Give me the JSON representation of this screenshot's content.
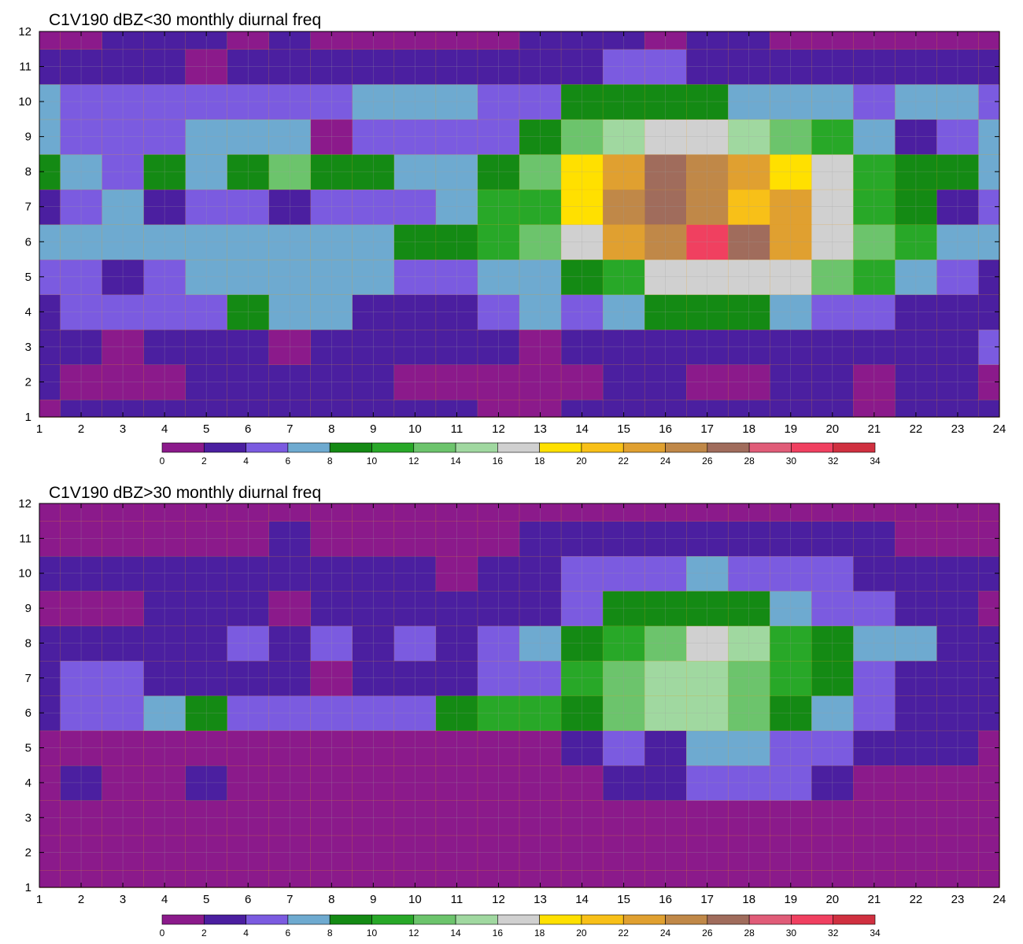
{
  "chart_data": [
    {
      "type": "heatmap",
      "title": "C1V190 dBZ<30 monthly diurnal freq",
      "x": [
        1,
        2,
        3,
        4,
        5,
        6,
        7,
        8,
        9,
        10,
        11,
        12,
        13,
        14,
        15,
        16,
        17,
        18,
        19,
        20,
        21,
        22,
        23,
        24
      ],
      "y": [
        1,
        2,
        3,
        4,
        5,
        6,
        7,
        8,
        9,
        10,
        11,
        12
      ],
      "xlim": [
        1,
        24
      ],
      "ylim": [
        1,
        12
      ],
      "xticks": [
        "1",
        "2",
        "3",
        "4",
        "5",
        "6",
        "7",
        "8",
        "9",
        "10",
        "11",
        "12",
        "13",
        "14",
        "15",
        "16",
        "17",
        "18",
        "19",
        "20",
        "21",
        "22",
        "23",
        "24"
      ],
      "yticks": [
        "1",
        "2",
        "3",
        "4",
        "5",
        "6",
        "7",
        "8",
        "9",
        "10",
        "11",
        "12"
      ],
      "grid": true,
      "z": [
        [
          1,
          3,
          3,
          2,
          2,
          3,
          3,
          3,
          3,
          3,
          3,
          1,
          1,
          2,
          2,
          2,
          3,
          3,
          2,
          2,
          1,
          2,
          3,
          3
        ],
        [
          3,
          1,
          1,
          1,
          2,
          3,
          3,
          3,
          3,
          1,
          1,
          1,
          1,
          1,
          3,
          3,
          1,
          1,
          3,
          3,
          1,
          3,
          3,
          1
        ],
        [
          3,
          3,
          1,
          3,
          3,
          3,
          1,
          3,
          3,
          3,
          3,
          3,
          1,
          3,
          3,
          3,
          3,
          3,
          3,
          3,
          3,
          3,
          3,
          5
        ],
        [
          3,
          5,
          5,
          5,
          5,
          9,
          7,
          7,
          3,
          3,
          3,
          5,
          7,
          5,
          7,
          9,
          9,
          9,
          7,
          5,
          5,
          3,
          3,
          3
        ],
        [
          5,
          5,
          3,
          5,
          7,
          7,
          7,
          7,
          7,
          5,
          5,
          7,
          7,
          9,
          11,
          17,
          17,
          17,
          17,
          13,
          11,
          7,
          5,
          3
        ],
        [
          7,
          7,
          7,
          7,
          7,
          7,
          7,
          7,
          7,
          9,
          9,
          11,
          13,
          17,
          23,
          25,
          31,
          27,
          23,
          17,
          13,
          11,
          7,
          7
        ],
        [
          3,
          5,
          7,
          3,
          5,
          5,
          3,
          5,
          5,
          5,
          7,
          11,
          11,
          19,
          25,
          27,
          25,
          21,
          23,
          17,
          11,
          9,
          3,
          5
        ],
        [
          9,
          7,
          5,
          9,
          7,
          9,
          13,
          9,
          9,
          7,
          7,
          9,
          13,
          19,
          23,
          27,
          25,
          23,
          19,
          17,
          11,
          9,
          9,
          7
        ],
        [
          7,
          5,
          5,
          5,
          7,
          7,
          7,
          1,
          5,
          5,
          5,
          5,
          9,
          13,
          15,
          17,
          17,
          15,
          13,
          11,
          7,
          3,
          5,
          7
        ],
        [
          7,
          5,
          5,
          5,
          5,
          5,
          5,
          5,
          7,
          7,
          7,
          5,
          5,
          9,
          9,
          9,
          9,
          7,
          7,
          7,
          5,
          7,
          7,
          5
        ],
        [
          3,
          3,
          3,
          3,
          1,
          3,
          3,
          3,
          3,
          3,
          3,
          3,
          3,
          3,
          5,
          5,
          3,
          3,
          3,
          3,
          3,
          3,
          3,
          3
        ],
        [
          1,
          1,
          3,
          3,
          3,
          1,
          3,
          1,
          1,
          1,
          1,
          1,
          3,
          3,
          3,
          1,
          3,
          3,
          1,
          1,
          1,
          1,
          1,
          1
        ]
      ],
      "contour_levels": [
        0,
        2,
        4,
        6,
        8,
        10,
        12,
        14,
        16,
        18,
        20,
        22,
        24,
        26,
        28,
        30,
        32,
        34
      ],
      "colorbar": {
        "ticks": [
          "0",
          "2",
          "4",
          "6",
          "8",
          "10",
          "12",
          "14",
          "16",
          "18",
          "20",
          "22",
          "24",
          "26",
          "28",
          "30",
          "32",
          "34"
        ],
        "colors": [
          "#8b1a8b",
          "#4b1fa0",
          "#7b5be0",
          "#6eaad0",
          "#148a14",
          "#28a828",
          "#6cc46c",
          "#a0d8a0",
          "#d0d0d0",
          "#ffe000",
          "#f8c018",
          "#e0a030",
          "#c08848",
          "#a06c5c",
          "#e05c78",
          "#f04060",
          "#d03040"
        ]
      },
      "contour_line_color": "#e8a020"
    },
    {
      "type": "heatmap",
      "title": "C1V190 dBZ>30 monthly diurnal freq",
      "x": [
        1,
        2,
        3,
        4,
        5,
        6,
        7,
        8,
        9,
        10,
        11,
        12,
        13,
        14,
        15,
        16,
        17,
        18,
        19,
        20,
        21,
        22,
        23,
        24
      ],
      "y": [
        1,
        2,
        3,
        4,
        5,
        6,
        7,
        8,
        9,
        10,
        11,
        12
      ],
      "xlim": [
        1,
        24
      ],
      "ylim": [
        1,
        12
      ],
      "xticks": [
        "1",
        "2",
        "3",
        "4",
        "5",
        "6",
        "7",
        "8",
        "9",
        "10",
        "11",
        "12",
        "13",
        "14",
        "15",
        "16",
        "17",
        "18",
        "19",
        "20",
        "21",
        "22",
        "23",
        "24"
      ],
      "yticks": [
        "1",
        "2",
        "3",
        "4",
        "5",
        "6",
        "7",
        "8",
        "9",
        "10",
        "11",
        "12"
      ],
      "grid": true,
      "z": [
        [
          1,
          1,
          1,
          1,
          1,
          1,
          1,
          1,
          1,
          1,
          1,
          1,
          1,
          1,
          1,
          1,
          1,
          1,
          1,
          1,
          1,
          1,
          1,
          1
        ],
        [
          1,
          1,
          1,
          1,
          1,
          1,
          1,
          1,
          1,
          1,
          1,
          1,
          1,
          1,
          1,
          1,
          1,
          1,
          1,
          1,
          1,
          1,
          1,
          1
        ],
        [
          1,
          1,
          1,
          1,
          1,
          1,
          1,
          1,
          1,
          1,
          1,
          1,
          1,
          1,
          1,
          1,
          1,
          1,
          1,
          1,
          1,
          1,
          1,
          1
        ],
        [
          1,
          3,
          1,
          1,
          3,
          1,
          1,
          1,
          1,
          1,
          1,
          1,
          1,
          1,
          3,
          3,
          5,
          5,
          5,
          3,
          1,
          1,
          1,
          1
        ],
        [
          1,
          1,
          1,
          1,
          1,
          1,
          1,
          1,
          1,
          1,
          1,
          1,
          1,
          3,
          5,
          3,
          7,
          7,
          5,
          5,
          3,
          3,
          3,
          1
        ],
        [
          3,
          5,
          5,
          7,
          9,
          5,
          5,
          5,
          5,
          5,
          9,
          11,
          11,
          9,
          13,
          15,
          15,
          13,
          9,
          7,
          5,
          3,
          3,
          3
        ],
        [
          3,
          5,
          5,
          3,
          3,
          3,
          3,
          1,
          3,
          3,
          3,
          5,
          5,
          11,
          13,
          15,
          15,
          13,
          11,
          9,
          5,
          3,
          3,
          3
        ],
        [
          3,
          3,
          3,
          3,
          3,
          5,
          3,
          5,
          3,
          5,
          3,
          5,
          7,
          9,
          11,
          13,
          17,
          15,
          11,
          9,
          7,
          7,
          3,
          3
        ],
        [
          1,
          1,
          1,
          3,
          3,
          3,
          1,
          3,
          3,
          3,
          3,
          3,
          3,
          5,
          9,
          9,
          9,
          9,
          7,
          5,
          5,
          3,
          3,
          1
        ],
        [
          3,
          3,
          3,
          3,
          3,
          3,
          3,
          3,
          3,
          3,
          1,
          3,
          3,
          5,
          5,
          5,
          7,
          5,
          5,
          5,
          3,
          3,
          3,
          3
        ],
        [
          1,
          1,
          1,
          1,
          1,
          1,
          3,
          1,
          1,
          1,
          1,
          1,
          3,
          3,
          3,
          3,
          3,
          3,
          3,
          3,
          3,
          1,
          1,
          1
        ],
        [
          1,
          1,
          1,
          1,
          1,
          1,
          1,
          1,
          1,
          1,
          1,
          1,
          1,
          1,
          1,
          1,
          1,
          1,
          1,
          1,
          1,
          1,
          1,
          1
        ]
      ],
      "contour_levels": [
        0,
        2,
        4,
        6,
        8,
        10,
        12,
        14,
        16,
        18,
        20,
        22,
        24,
        26,
        28,
        30,
        32,
        34
      ],
      "colorbar": {
        "ticks": [
          "0",
          "2",
          "4",
          "6",
          "8",
          "10",
          "12",
          "14",
          "16",
          "18",
          "20",
          "22",
          "24",
          "26",
          "28",
          "30",
          "32",
          "34"
        ],
        "colors": [
          "#8b1a8b",
          "#4b1fa0",
          "#7b5be0",
          "#6eaad0",
          "#148a14",
          "#28a828",
          "#6cc46c",
          "#a0d8a0",
          "#d0d0d0",
          "#ffe000",
          "#f8c018",
          "#e0a030",
          "#c08848",
          "#a06c5c",
          "#e05c78",
          "#f04060",
          "#d03040"
        ]
      },
      "contour_line_color": "#e8a020"
    }
  ]
}
